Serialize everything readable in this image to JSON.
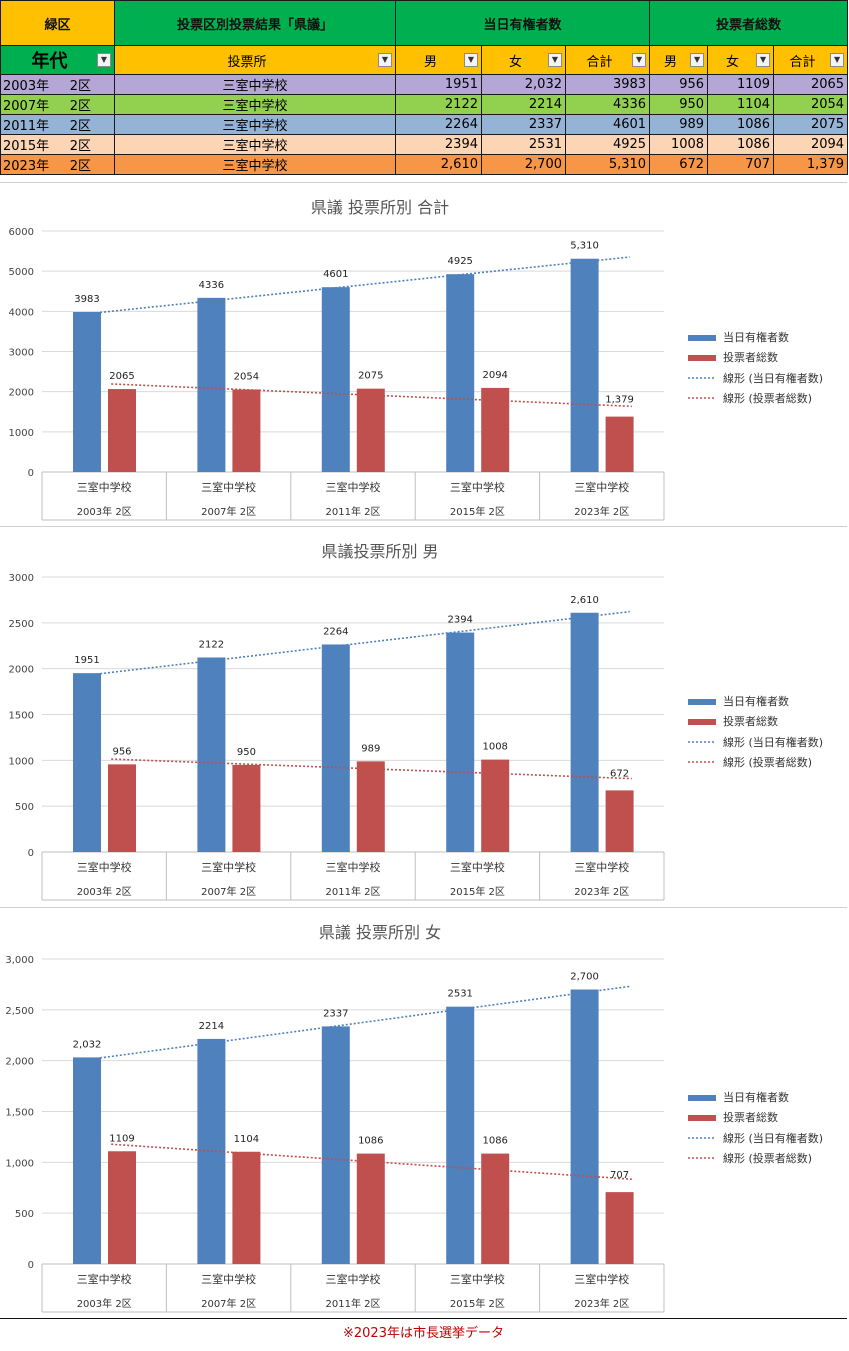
{
  "header": {
    "ward": "緑区",
    "title": "投票区別投票結果「県議」",
    "eligible_header": "当日有権者数",
    "voters_header": "投票者総数",
    "age_label": "年代",
    "station_label": "投票所",
    "male": "男",
    "female": "女",
    "total": "合計"
  },
  "colors": {
    "row_2003": "#b4a7d6",
    "row_2007": "#92d050",
    "row_2011": "#95b3d7",
    "row_2015": "#fcd5b4",
    "row_2023": "#f79646",
    "bar_blue": "#4f81bd",
    "bar_red": "#c0504d"
  },
  "rows": [
    {
      "year": "2003年",
      "district": "2区",
      "station": "三室中学校",
      "em": "1951",
      "ef": "2,032",
      "et": "3983",
      "vm": "956",
      "vf": "1109",
      "vt": "2065"
    },
    {
      "year": "2007年",
      "district": "2区",
      "station": "三室中学校",
      "em": "2122",
      "ef": "2214",
      "et": "4336",
      "vm": "950",
      "vf": "1104",
      "vt": "2054"
    },
    {
      "year": "2011年",
      "district": "2区",
      "station": "三室中学校",
      "em": "2264",
      "ef": "2337",
      "et": "4601",
      "vm": "989",
      "vf": "1086",
      "vt": "2075"
    },
    {
      "year": "2015年",
      "district": "2区",
      "station": "三室中学校",
      "em": "2394",
      "ef": "2531",
      "et": "4925",
      "vm": "1008",
      "vf": "1086",
      "vt": "2094"
    },
    {
      "year": "2023年",
      "district": "2区",
      "station": "三室中学校",
      "em": "2,610",
      "ef": "2,700",
      "et": "5,310",
      "vm": "672",
      "vf": "707",
      "vt": "1,379"
    }
  ],
  "legend": [
    "当日有権者数",
    "投票者総数",
    "線形 (当日有権者数)",
    "線形 (投票者総数)"
  ],
  "footnote": "※2023年は市長選挙データ",
  "chart_data": [
    {
      "type": "bar",
      "title": "県議  投票所別  合計",
      "categories": [
        "三室中学校",
        "三室中学校",
        "三室中学校",
        "三室中学校",
        "三室中学校"
      ],
      "category_groups": [
        "2003年  2区",
        "2007年  2区",
        "2011年  2区",
        "2015年  2区",
        "2023年  2区"
      ],
      "series": [
        {
          "name": "当日有権者数",
          "values": [
            3983,
            4336,
            4601,
            4925,
            5310
          ],
          "labels": [
            "3983",
            "4336",
            "4601",
            "4925",
            "5,310"
          ]
        },
        {
          "name": "投票者総数",
          "values": [
            2065,
            2054,
            2075,
            2094,
            1379
          ],
          "labels": [
            "2065",
            "2054",
            "2075",
            "2094",
            "1,379"
          ]
        }
      ],
      "trendlines": [
        "線形 (当日有権者数)",
        "線形 (投票者総数)"
      ],
      "ylim": [
        0,
        6000
      ],
      "yticks": [
        "0",
        "1000",
        "2000",
        "3000",
        "4000",
        "5000",
        "6000"
      ],
      "grid": true,
      "legend_position": "right"
    },
    {
      "type": "bar",
      "title": "県議投票所別  男",
      "categories": [
        "三室中学校",
        "三室中学校",
        "三室中学校",
        "三室中学校",
        "三室中学校"
      ],
      "category_groups": [
        "2003年  2区",
        "2007年  2区",
        "2011年  2区",
        "2015年  2区",
        "2023年  2区"
      ],
      "series": [
        {
          "name": "当日有権者数",
          "values": [
            1951,
            2122,
            2264,
            2394,
            2610
          ],
          "labels": [
            "1951",
            "2122",
            "2264",
            "2394",
            "2,610"
          ]
        },
        {
          "name": "投票者総数",
          "values": [
            956,
            950,
            989,
            1008,
            672
          ],
          "labels": [
            "956",
            "950",
            "989",
            "1008",
            "672"
          ]
        }
      ],
      "trendlines": [
        "線形 (当日有権者数)",
        "線形 (投票者総数)"
      ],
      "ylim": [
        0,
        3000
      ],
      "yticks": [
        "0",
        "500",
        "1000",
        "1500",
        "2000",
        "2500",
        "3000"
      ],
      "grid": true,
      "legend_position": "right"
    },
    {
      "type": "bar",
      "title": "県議  投票所別  女",
      "categories": [
        "三室中学校",
        "三室中学校",
        "三室中学校",
        "三室中学校",
        "三室中学校"
      ],
      "category_groups": [
        "2003年  2区",
        "2007年  2区",
        "2011年  2区",
        "2015年  2区",
        "2023年  2区"
      ],
      "series": [
        {
          "name": "当日有権者数",
          "values": [
            2032,
            2214,
            2337,
            2531,
            2700
          ],
          "labels": [
            "2,032",
            "2214",
            "2337",
            "2531",
            "2,700"
          ]
        },
        {
          "name": "投票者総数",
          "values": [
            1109,
            1104,
            1086,
            1086,
            707
          ],
          "labels": [
            "1109",
            "1104",
            "1086",
            "1086",
            "707"
          ]
        }
      ],
      "trendlines": [
        "線形 (当日有権者数)",
        "線形 (投票者総数)"
      ],
      "ylim": [
        0,
        3000
      ],
      "yticks": [
        "0",
        "500",
        "1,000",
        "1,500",
        "2,000",
        "2,500",
        "3,000"
      ],
      "grid": true,
      "legend_position": "right"
    }
  ]
}
